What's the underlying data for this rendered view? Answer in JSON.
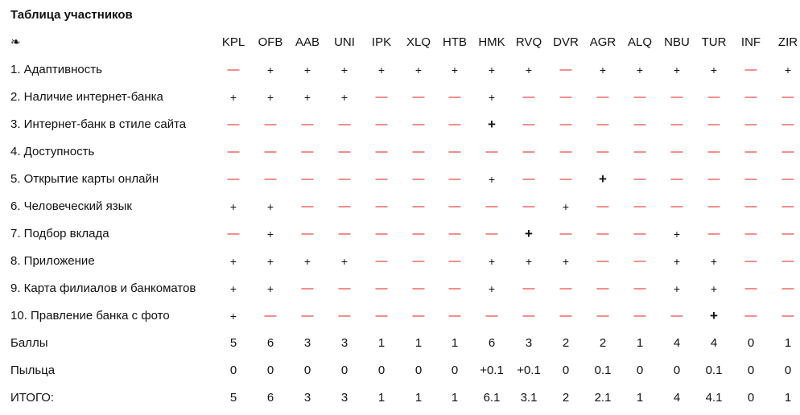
{
  "title": "Таблица участников",
  "header_icon": "❧",
  "columns": [
    "KPL",
    "OFB",
    "AAB",
    "UNI",
    "IPK",
    "XLQ",
    "HTB",
    "HMK",
    "RVQ",
    "DVR",
    "AGR",
    "ALQ",
    "NBU",
    "TUR",
    "INF",
    "ZIR"
  ],
  "symbols": {
    "plus": "+",
    "dash": "—"
  },
  "colors": {
    "dash": "#e0201d",
    "text": "#111111"
  },
  "criteria": [
    {
      "label": "1. Адаптивность",
      "marks": [
        "-",
        "+",
        "+",
        "+",
        "+",
        "+",
        "+",
        "+",
        "+",
        "-",
        "+",
        "+",
        "+",
        "+",
        "-",
        "+"
      ]
    },
    {
      "label": "2. Наличие интернет-банка",
      "marks": [
        "+",
        "+",
        "+",
        "+",
        "-",
        "-",
        "-",
        "+",
        "-",
        "-",
        "-",
        "-",
        "-",
        "-",
        "-",
        "-"
      ]
    },
    {
      "label": "3. Интернет-банк в стиле сайта",
      "marks": [
        "-",
        "-",
        "-",
        "-",
        "-",
        "-",
        "-",
        "B",
        "-",
        "-",
        "-",
        "-",
        "-",
        "-",
        "-",
        "-"
      ]
    },
    {
      "label": "4. Доступность",
      "marks": [
        "-",
        "-",
        "-",
        "-",
        "-",
        "-",
        "-",
        "-",
        "-",
        "-",
        "-",
        "-",
        "-",
        "-",
        "-",
        "-"
      ]
    },
    {
      "label": "5. Открытие карты онлайн",
      "marks": [
        "-",
        "-",
        "-",
        "-",
        "-",
        "-",
        "-",
        "+",
        "-",
        "-",
        "B",
        "-",
        "-",
        "-",
        "-",
        "-"
      ]
    },
    {
      "label": "6. Человеческий язык",
      "marks": [
        "+",
        "+",
        "-",
        "-",
        "-",
        "-",
        "-",
        "-",
        "-",
        "+",
        "-",
        "-",
        "-",
        "-",
        "-",
        "-"
      ]
    },
    {
      "label": "7. Подбор вклада",
      "marks": [
        "-",
        "+",
        "-",
        "-",
        "-",
        "-",
        "-",
        "-",
        "B",
        "-",
        "-",
        "-",
        "+",
        "-",
        "-",
        "-"
      ]
    },
    {
      "label": "8. Приложение",
      "marks": [
        "+",
        "+",
        "+",
        "+",
        "-",
        "-",
        "-",
        "+",
        "+",
        "+",
        "-",
        "-",
        "+",
        "+",
        "-",
        "-"
      ]
    },
    {
      "label": "9. Карта филиалов и банкоматов",
      "marks": [
        "+",
        "+",
        "-",
        "-",
        "-",
        "-",
        "-",
        "+",
        "-",
        "-",
        "-",
        "-",
        "+",
        "+",
        "-",
        "-"
      ]
    },
    {
      "label": "10. Правление банка с фото",
      "marks": [
        "+",
        "-",
        "-",
        "-",
        "-",
        "-",
        "-",
        "-",
        "-",
        "-",
        "-",
        "-",
        "-",
        "B",
        "-",
        "-"
      ]
    }
  ],
  "totals": [
    {
      "label": "Баллы",
      "values": [
        "5",
        "6",
        "3",
        "3",
        "1",
        "1",
        "1",
        "6",
        "3",
        "2",
        "2",
        "1",
        "4",
        "4",
        "0",
        "1"
      ]
    },
    {
      "label": "Пыльца",
      "values": [
        "0",
        "0",
        "0",
        "0",
        "0",
        "0",
        "0",
        "+0.1",
        "+0.1",
        "0",
        "0.1",
        "0",
        "0",
        "0.1",
        "0",
        "0"
      ]
    },
    {
      "label": "ИТОГО:",
      "values": [
        "5",
        "6",
        "3",
        "3",
        "1",
        "1",
        "1",
        "6.1",
        "3.1",
        "2",
        "2.1",
        "1",
        "4",
        "4.1",
        "0",
        "1"
      ]
    }
  ]
}
